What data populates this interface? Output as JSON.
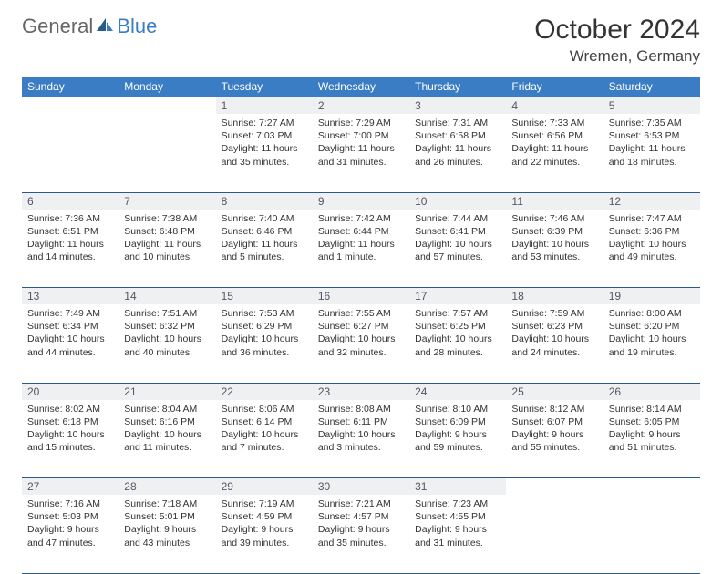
{
  "brand": {
    "part1": "General",
    "part2": "Blue"
  },
  "title": "October 2024",
  "location": "Wremen, Germany",
  "colors": {
    "header_bg": "#3b7dc4",
    "header_text": "#ffffff",
    "daynum_bg": "#eef0f2",
    "daynum_text": "#556",
    "grid_border": "#2a5a8a",
    "body_text": "#333333",
    "page_bg": "#ffffff"
  },
  "font": {
    "title_size": 30,
    "location_size": 17,
    "header_size": 12,
    "daynum_size": 12,
    "body_size": 10.5
  },
  "weekdays": [
    "Sunday",
    "Monday",
    "Tuesday",
    "Wednesday",
    "Thursday",
    "Friday",
    "Saturday"
  ],
  "grid": {
    "rows": 5,
    "cols": 7,
    "first_day_col": 2,
    "last_day": 31
  },
  "days": {
    "1": {
      "sunrise": "7:27 AM",
      "sunset": "7:03 PM",
      "daylight": "11 hours and 35 minutes."
    },
    "2": {
      "sunrise": "7:29 AM",
      "sunset": "7:00 PM",
      "daylight": "11 hours and 31 minutes."
    },
    "3": {
      "sunrise": "7:31 AM",
      "sunset": "6:58 PM",
      "daylight": "11 hours and 26 minutes."
    },
    "4": {
      "sunrise": "7:33 AM",
      "sunset": "6:56 PM",
      "daylight": "11 hours and 22 minutes."
    },
    "5": {
      "sunrise": "7:35 AM",
      "sunset": "6:53 PM",
      "daylight": "11 hours and 18 minutes."
    },
    "6": {
      "sunrise": "7:36 AM",
      "sunset": "6:51 PM",
      "daylight": "11 hours and 14 minutes."
    },
    "7": {
      "sunrise": "7:38 AM",
      "sunset": "6:48 PM",
      "daylight": "11 hours and 10 minutes."
    },
    "8": {
      "sunrise": "7:40 AM",
      "sunset": "6:46 PM",
      "daylight": "11 hours and 5 minutes."
    },
    "9": {
      "sunrise": "7:42 AM",
      "sunset": "6:44 PM",
      "daylight": "11 hours and 1 minute."
    },
    "10": {
      "sunrise": "7:44 AM",
      "sunset": "6:41 PM",
      "daylight": "10 hours and 57 minutes."
    },
    "11": {
      "sunrise": "7:46 AM",
      "sunset": "6:39 PM",
      "daylight": "10 hours and 53 minutes."
    },
    "12": {
      "sunrise": "7:47 AM",
      "sunset": "6:36 PM",
      "daylight": "10 hours and 49 minutes."
    },
    "13": {
      "sunrise": "7:49 AM",
      "sunset": "6:34 PM",
      "daylight": "10 hours and 44 minutes."
    },
    "14": {
      "sunrise": "7:51 AM",
      "sunset": "6:32 PM",
      "daylight": "10 hours and 40 minutes."
    },
    "15": {
      "sunrise": "7:53 AM",
      "sunset": "6:29 PM",
      "daylight": "10 hours and 36 minutes."
    },
    "16": {
      "sunrise": "7:55 AM",
      "sunset": "6:27 PM",
      "daylight": "10 hours and 32 minutes."
    },
    "17": {
      "sunrise": "7:57 AM",
      "sunset": "6:25 PM",
      "daylight": "10 hours and 28 minutes."
    },
    "18": {
      "sunrise": "7:59 AM",
      "sunset": "6:23 PM",
      "daylight": "10 hours and 24 minutes."
    },
    "19": {
      "sunrise": "8:00 AM",
      "sunset": "6:20 PM",
      "daylight": "10 hours and 19 minutes."
    },
    "20": {
      "sunrise": "8:02 AM",
      "sunset": "6:18 PM",
      "daylight": "10 hours and 15 minutes."
    },
    "21": {
      "sunrise": "8:04 AM",
      "sunset": "6:16 PM",
      "daylight": "10 hours and 11 minutes."
    },
    "22": {
      "sunrise": "8:06 AM",
      "sunset": "6:14 PM",
      "daylight": "10 hours and 7 minutes."
    },
    "23": {
      "sunrise": "8:08 AM",
      "sunset": "6:11 PM",
      "daylight": "10 hours and 3 minutes."
    },
    "24": {
      "sunrise": "8:10 AM",
      "sunset": "6:09 PM",
      "daylight": "9 hours and 59 minutes."
    },
    "25": {
      "sunrise": "8:12 AM",
      "sunset": "6:07 PM",
      "daylight": "9 hours and 55 minutes."
    },
    "26": {
      "sunrise": "8:14 AM",
      "sunset": "6:05 PM",
      "daylight": "9 hours and 51 minutes."
    },
    "27": {
      "sunrise": "7:16 AM",
      "sunset": "5:03 PM",
      "daylight": "9 hours and 47 minutes."
    },
    "28": {
      "sunrise": "7:18 AM",
      "sunset": "5:01 PM",
      "daylight": "9 hours and 43 minutes."
    },
    "29": {
      "sunrise": "7:19 AM",
      "sunset": "4:59 PM",
      "daylight": "9 hours and 39 minutes."
    },
    "30": {
      "sunrise": "7:21 AM",
      "sunset": "4:57 PM",
      "daylight": "9 hours and 35 minutes."
    },
    "31": {
      "sunrise": "7:23 AM",
      "sunset": "4:55 PM",
      "daylight": "9 hours and 31 minutes."
    }
  },
  "labels": {
    "sunrise": "Sunrise:",
    "sunset": "Sunset:",
    "daylight": "Daylight:"
  }
}
